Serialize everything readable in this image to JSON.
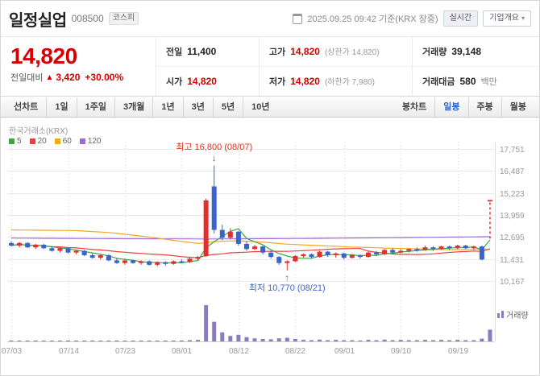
{
  "header": {
    "company_name": "일정실업",
    "stock_code": "008500",
    "market_badge": "코스피",
    "quote_time": "2025.09.25 09:42 기준(KRX 장중)",
    "realtime_button": "실시간",
    "company_info_button": "기업개요",
    "company_info_chevron": "▾"
  },
  "price": {
    "current": "14,820",
    "change_label": "전일대비",
    "change_direction": "▲",
    "change_value": "3,420",
    "change_percent": "+30.00%",
    "up_color": "#d60000"
  },
  "info": {
    "prev_close": {
      "label": "전일",
      "value": "11,400"
    },
    "high": {
      "label": "고가",
      "value": "14,820",
      "sub": "(상한가 14,820)"
    },
    "volume": {
      "label": "거래량",
      "value": "39,148"
    },
    "open": {
      "label": "시가",
      "value": "14,820"
    },
    "low": {
      "label": "저가",
      "value": "14,820",
      "sub": "(하한가 7,980)"
    },
    "trade_value": {
      "label": "거래대금",
      "value": "580",
      "unit": "백만"
    }
  },
  "toolbar": {
    "left": [
      "선차트",
      "1일",
      "1주일",
      "3개월",
      "1년",
      "3년",
      "5년",
      "10년"
    ],
    "right": [
      "봉차트",
      "일봉",
      "주봉",
      "월봉"
    ],
    "active_right": "일봉"
  },
  "chart_data": {
    "type": "candlestick",
    "exchange_label": "한국거래소(KRX)",
    "volume_label": "거래량",
    "legend": [
      {
        "label": "5",
        "color": "#3aaa3a"
      },
      {
        "label": "20",
        "color": "#e8403d"
      },
      {
        "label": "60",
        "color": "#f5a623"
      },
      {
        "label": "120",
        "color": "#9b6dd6"
      }
    ],
    "colors": {
      "up": "#e12f2f",
      "down": "#3b64c9",
      "volume": "#8a7cc0",
      "grid": "#e9e9e9",
      "vgrid": "#d8d8d8",
      "axis_text": "#999999",
      "baseline": "#cccccc"
    },
    "value_range": [
      10167,
      17751
    ],
    "y_ticks": [
      {
        "v": 17751,
        "label": "17,751"
      },
      {
        "v": 16487,
        "label": "16,487"
      },
      {
        "v": 15223,
        "label": "15,223"
      },
      {
        "v": 13959,
        "label": "13,959"
      },
      {
        "v": 12695,
        "label": "12,695"
      },
      {
        "v": 11431,
        "label": "11,431"
      },
      {
        "v": 10167,
        "label": "10,167"
      }
    ],
    "x_ticks": [
      {
        "i": 0,
        "label": "07/03"
      },
      {
        "i": 7,
        "label": "07/14"
      },
      {
        "i": 14,
        "label": "07/23"
      },
      {
        "i": 21,
        "label": "08/01"
      },
      {
        "i": 28,
        "label": "08/12"
      },
      {
        "i": 35,
        "label": "08/22"
      },
      {
        "i": 41,
        "label": "09/01"
      },
      {
        "i": 48,
        "label": "09/10"
      },
      {
        "i": 55,
        "label": "09/19"
      }
    ],
    "candles": [
      [
        12350,
        12450,
        12150,
        12200
      ],
      [
        12200,
        12400,
        12100,
        12350
      ],
      [
        12350,
        12400,
        12050,
        12100
      ],
      [
        12100,
        12300,
        12000,
        12250
      ],
      [
        12250,
        12300,
        12000,
        12050
      ],
      [
        12050,
        12150,
        11850,
        11900
      ],
      [
        11900,
        12100,
        11800,
        12050
      ],
      [
        12050,
        12100,
        11750,
        11800
      ],
      [
        11800,
        11950,
        11700,
        11900
      ],
      [
        11900,
        11950,
        11600,
        11650
      ],
      [
        11650,
        11750,
        11450,
        11500
      ],
      [
        11500,
        11700,
        11400,
        11650
      ],
      [
        11650,
        11700,
        11300,
        11350
      ],
      [
        11350,
        11500,
        11150,
        11200
      ],
      [
        11200,
        11400,
        11100,
        11350
      ],
      [
        11350,
        11400,
        11150,
        11200
      ],
      [
        11200,
        11350,
        11100,
        11300
      ],
      [
        11300,
        11350,
        11050,
        11100
      ],
      [
        11100,
        11300,
        11000,
        11250
      ],
      [
        11250,
        11300,
        11050,
        11150
      ],
      [
        11150,
        11350,
        11100,
        11300
      ],
      [
        11300,
        11400,
        11200,
        11250
      ],
      [
        11250,
        11500,
        11200,
        11450
      ],
      [
        11450,
        11600,
        11350,
        11550
      ],
      [
        11600,
        14900,
        11550,
        14800
      ],
      [
        15600,
        16800,
        12900,
        13100
      ],
      [
        13100,
        13400,
        12500,
        12650
      ],
      [
        12650,
        13200,
        12550,
        13000
      ],
      [
        13000,
        13050,
        12200,
        12300
      ],
      [
        12300,
        12450,
        11900,
        12000
      ],
      [
        12000,
        12250,
        11950,
        12150
      ],
      [
        12150,
        12200,
        11700,
        11800
      ],
      [
        11800,
        11900,
        11450,
        11550
      ],
      [
        11550,
        11600,
        11100,
        11200
      ],
      [
        11200,
        11350,
        10770,
        11300
      ],
      [
        11300,
        11650,
        11250,
        11600
      ],
      [
        11600,
        11750,
        11500,
        11700
      ],
      [
        11700,
        11750,
        11450,
        11550
      ],
      [
        11550,
        11900,
        11500,
        11850
      ],
      [
        11850,
        11900,
        11550,
        11650
      ],
      [
        11650,
        11800,
        11500,
        11750
      ],
      [
        11750,
        11800,
        11400,
        11500
      ],
      [
        11500,
        11700,
        11450,
        11650
      ],
      [
        11650,
        11700,
        11450,
        11550
      ],
      [
        11550,
        11850,
        11500,
        11800
      ],
      [
        11800,
        11900,
        11600,
        11700
      ],
      [
        11700,
        12000,
        11650,
        11950
      ],
      [
        11950,
        12050,
        11700,
        11800
      ],
      [
        11800,
        12000,
        11750,
        11900
      ],
      [
        11900,
        12050,
        11800,
        12000
      ],
      [
        12000,
        12100,
        11850,
        11950
      ],
      [
        11950,
        12200,
        11900,
        12100
      ],
      [
        12100,
        12150,
        11900,
        12000
      ],
      [
        12000,
        12200,
        11950,
        12150
      ],
      [
        12150,
        12200,
        11950,
        12050
      ],
      [
        12050,
        12250,
        12000,
        12200
      ],
      [
        12200,
        12250,
        12000,
        12050
      ],
      [
        12050,
        12200,
        11950,
        12150
      ],
      [
        12150,
        12200,
        11350,
        11400
      ],
      [
        14820,
        14820,
        14820,
        14820
      ]
    ],
    "volumes": [
      3,
      2,
      2,
      3,
      2,
      2,
      2,
      3,
      2,
      2,
      3,
      2,
      2,
      3,
      2,
      2,
      2,
      2,
      2,
      2,
      2,
      3,
      4,
      5,
      120,
      65,
      30,
      18,
      22,
      14,
      10,
      8,
      7,
      10,
      12,
      8,
      5,
      4,
      6,
      4,
      5,
      4,
      4,
      3,
      5,
      4,
      6,
      4,
      5,
      4,
      4,
      5,
      4,
      5,
      4,
      5,
      4,
      4,
      9,
      39
    ],
    "ma_windows": [
      5,
      20
    ],
    "ma60_points": [
      [
        0,
        13100
      ],
      [
        8,
        13060
      ],
      [
        12,
        12950
      ],
      [
        16,
        12750
      ],
      [
        20,
        12500
      ],
      [
        23,
        12320
      ],
      [
        25,
        12430
      ],
      [
        28,
        12480
      ],
      [
        31,
        12400
      ],
      [
        34,
        12280
      ],
      [
        38,
        12200
      ],
      [
        42,
        12120
      ],
      [
        46,
        12060
      ],
      [
        50,
        12010
      ],
      [
        54,
        11970
      ],
      [
        59,
        11990
      ]
    ],
    "ma120_points": [
      [
        0,
        12630
      ],
      [
        12,
        12600
      ],
      [
        24,
        12580
      ],
      [
        36,
        12610
      ],
      [
        48,
        12660
      ],
      [
        59,
        12710
      ]
    ],
    "annotations": {
      "high": {
        "label": "최고 16,800 (08/07)",
        "arrow": "↓",
        "index": 25,
        "value": 16800,
        "color": "#e0301e"
      },
      "low": {
        "label": "최저 10,770 (08/21)",
        "arrow": "↑",
        "index": 34,
        "value": 10770,
        "color": "#3b64c9"
      }
    },
    "current_price": 14820
  }
}
